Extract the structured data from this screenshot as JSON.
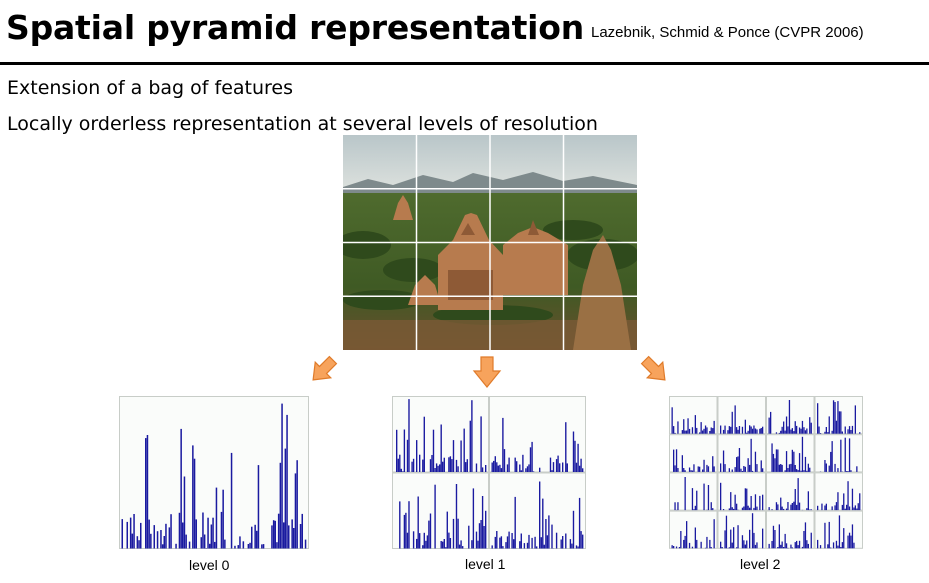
{
  "slide": {
    "title": "Spatial pyramid representation",
    "citation": "Lazebnik, Schmid & Ponce (CVPR 2006)",
    "bullets": [
      "Extension of a bag of features",
      "Locally orderless representation at several levels of resolution"
    ]
  },
  "levels": [
    {
      "caption": "level 0"
    },
    {
      "caption": "level 1"
    },
    {
      "caption": "level 2"
    }
  ],
  "colors": {
    "bar": "#1a1aa0",
    "arrow_fill": "#f7a35c",
    "arrow_stroke": "#e07b2a",
    "grid_line": "#ffffff"
  }
}
